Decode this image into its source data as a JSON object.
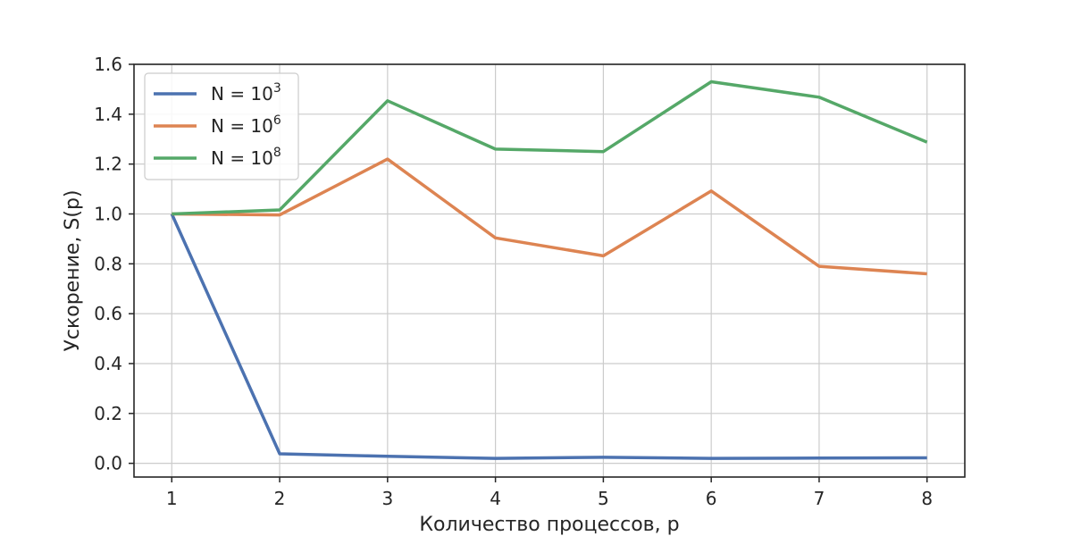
{
  "chart_data": {
    "type": "line",
    "title": "",
    "xlabel": "Количество процессов, p",
    "ylabel": "Ускорение, S(p)",
    "x": [
      1,
      2,
      3,
      4,
      5,
      6,
      7,
      8
    ],
    "xticks": [
      "1",
      "2",
      "3",
      "4",
      "5",
      "6",
      "7",
      "8"
    ],
    "xlim": [
      0.65,
      8.35
    ],
    "yticks": [
      "0.0",
      "0.2",
      "0.4",
      "0.6",
      "0.8",
      "1.0",
      "1.2",
      "1.4",
      "1.6"
    ],
    "ylim": [
      -0.055,
      1.6
    ],
    "grid": true,
    "legend_position": "top-left",
    "series": [
      {
        "name": "N = 10",
        "exponent": "3",
        "color": "#4c72b0",
        "values": [
          1.0,
          0.038,
          0.028,
          0.02,
          0.024,
          0.02,
          0.021,
          0.022
        ]
      },
      {
        "name": "N = 10",
        "exponent": "6",
        "color": "#dd8452",
        "values": [
          1.0,
          0.996,
          1.22,
          0.904,
          0.832,
          1.092,
          0.79,
          0.76
        ]
      },
      {
        "name": "N = 10",
        "exponent": "8",
        "color": "#55a868",
        "values": [
          1.0,
          1.016,
          1.454,
          1.26,
          1.25,
          1.53,
          1.468,
          1.288
        ]
      }
    ]
  }
}
